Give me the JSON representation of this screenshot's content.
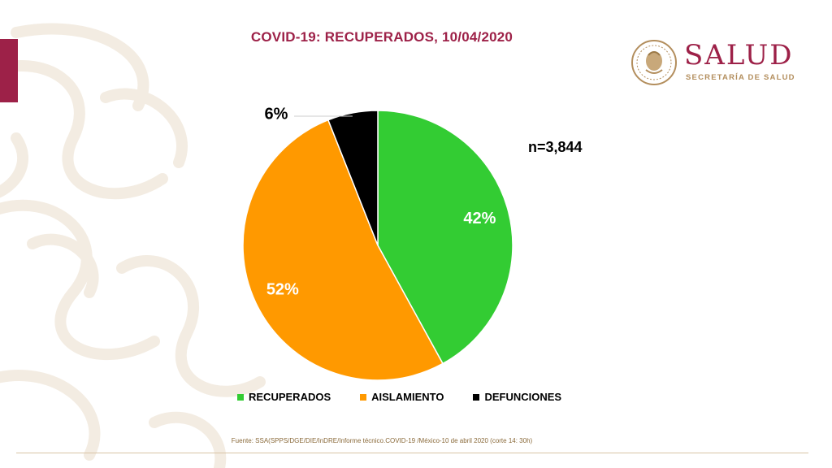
{
  "title": "COVID-19: RECUPERADOS, 10/04/2020",
  "logo": {
    "word": "SALUD",
    "subtitle": "SECRETARÍA DE SALUD"
  },
  "n_label": "n=3,844",
  "source": "Fuente: SSA(SPPS/DGE/DIE/InDRE/Informe técnico.COVID-19 /México-10 de abril 2020 (corte 14: 30h)",
  "colors": {
    "title": "#9d2148",
    "accent": "#9d2148",
    "logo": "#9d2148",
    "logo_sub": "#b38e5d",
    "source": "#8a6a3a",
    "footer_line": "#d8c4a6",
    "pattern": "#f3ece2"
  },
  "chart_data": {
    "type": "pie",
    "title": "COVID-19: RECUPERADOS, 10/04/2020",
    "slices": [
      {
        "name": "RECUPERADOS",
        "value": 42,
        "label": "42%",
        "color": "#33cc33"
      },
      {
        "name": "AISLAMIENTO",
        "value": 52,
        "label": "52%",
        "color": "#ff9900"
      },
      {
        "name": "DEFUNCIONES",
        "value": 6,
        "label": "6%",
        "color": "#000000"
      }
    ],
    "legend_position": "bottom"
  }
}
